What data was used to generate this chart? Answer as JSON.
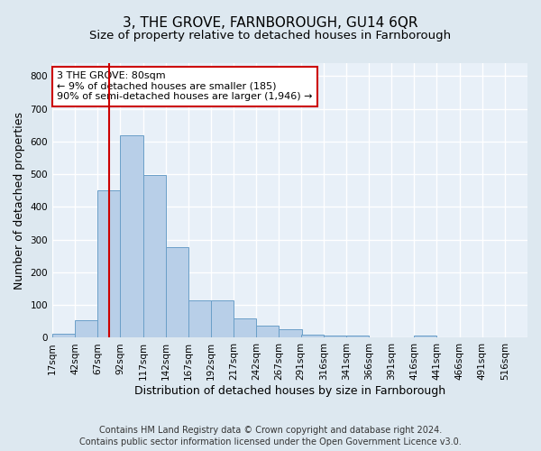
{
  "title": "3, THE GROVE, FARNBOROUGH, GU14 6QR",
  "subtitle": "Size of property relative to detached houses in Farnborough",
  "xlabel": "Distribution of detached houses by size in Farnborough",
  "ylabel": "Number of detached properties",
  "footnote1": "Contains HM Land Registry data © Crown copyright and database right 2024.",
  "footnote2": "Contains public sector information licensed under the Open Government Licence v3.0.",
  "bins": [
    17,
    42,
    67,
    92,
    117,
    142,
    167,
    192,
    217,
    242,
    267,
    291,
    316,
    341,
    366,
    391,
    416,
    441,
    466,
    491,
    516
  ],
  "bar_heights": [
    12,
    55,
    450,
    620,
    498,
    277,
    115,
    115,
    60,
    37,
    25,
    10,
    8,
    8,
    0,
    0,
    6,
    0,
    0,
    0,
    0
  ],
  "bar_color": "#b8cfe8",
  "bar_edge_color": "#6a9fc8",
  "property_size": 80,
  "vline_color": "#cc0000",
  "annotation_text": "3 THE GROVE: 80sqm\n← 9% of detached houses are smaller (185)\n90% of semi-detached houses are larger (1,946) →",
  "annotation_box_color": "#ffffff",
  "annotation_box_edge_color": "#cc0000",
  "ylim": [
    0,
    840
  ],
  "yticks": [
    0,
    100,
    200,
    300,
    400,
    500,
    600,
    700,
    800
  ],
  "bg_color": "#dde8f0",
  "plot_bg_color": "#e8f0f8",
  "grid_color": "#ffffff",
  "title_fontsize": 11,
  "subtitle_fontsize": 9.5,
  "tick_fontsize": 7.5,
  "label_fontsize": 9,
  "footnote_fontsize": 7,
  "annotation_fontsize": 8
}
